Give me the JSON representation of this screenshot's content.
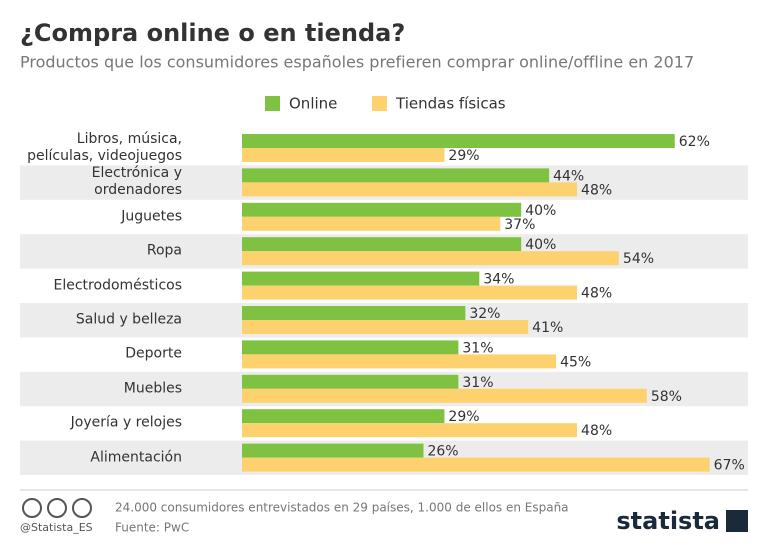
{
  "chart_data": {
    "type": "hbar",
    "title": "¿Compra online o en tienda?",
    "subtitle": "Productos que los consumidores españoles prefieren comprar online/offline en 2017",
    "categories": [
      "Libros, música, películas, videojuegos",
      "Electrónica y ordenadores",
      "Juguetes",
      "Ropa",
      "Electrodomésticos",
      "Salud y belleza",
      "Deporte",
      "Muebles",
      "Joyería y relojes",
      "Alimentación"
    ],
    "series": [
      {
        "name": "Online",
        "color": "#7fc241",
        "values": [
          62,
          44,
          40,
          40,
          34,
          32,
          31,
          31,
          29,
          26
        ],
        "value_labels": [
          "62%",
          "44%",
          "40%",
          "40%",
          "34%",
          "32%",
          "31%",
          "31%",
          "29%",
          "26%"
        ]
      },
      {
        "name": "Tiendas físicas",
        "color": "#fdd26e",
        "values": [
          29,
          48,
          37,
          54,
          48,
          41,
          45,
          58,
          48,
          67
        ],
        "value_labels": [
          "29%",
          "48%",
          "37%",
          "54%",
          "48%",
          "41%",
          "45%",
          "58%",
          "48%",
          "67%"
        ]
      }
    ],
    "legend": "top"
  },
  "footer": {
    "note": "24.000 consumidores entrevistados en 29 países, 1.000 de ellos en España",
    "source": "Fuente: PwC",
    "handle": "@Statista_ES",
    "brand": "statista"
  }
}
